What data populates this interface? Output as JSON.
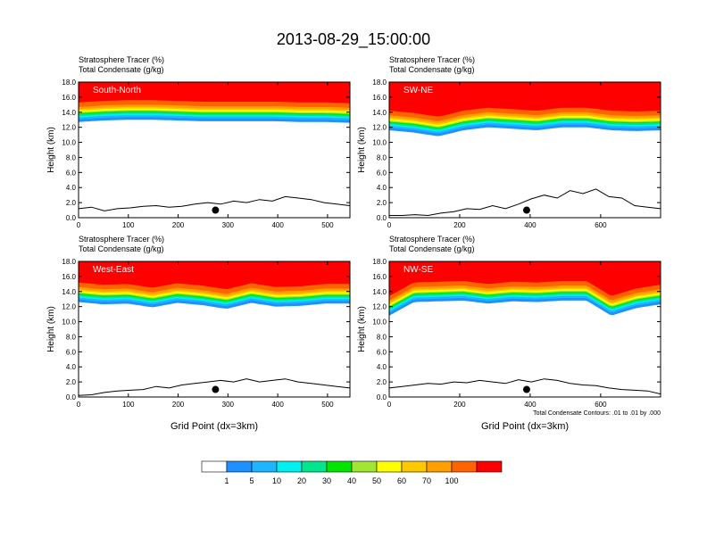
{
  "figure": {
    "title": "2013-08-29_15:00:00",
    "footnote": "Total Condensate Contours: .01 to .01 by .000"
  },
  "colorbar": {
    "colors": [
      "#ffffff",
      "#1e90ff",
      "#1eb4ff",
      "#00f0f0",
      "#00e68c",
      "#00e600",
      "#a0e632",
      "#ffff00",
      "#ffc800",
      "#ffa000",
      "#ff6400",
      "#ff0000"
    ],
    "labels": [
      "1",
      "5",
      "10",
      "20",
      "30",
      "40",
      "50",
      "60",
      "70",
      "100"
    ]
  },
  "chart_data": [
    {
      "type": "heatmap",
      "panel_label": "South-North",
      "title_lines": [
        "Stratosphere Tracer   (%)",
        "Total Condensate   (g/kg)"
      ],
      "ylabel": "Height (km)",
      "xlabel": "",
      "xlim": [
        0,
        545
      ],
      "ylim": [
        0,
        18
      ],
      "xticks": [
        "0",
        "100",
        "200",
        "300",
        "400",
        "500"
      ],
      "yticks": [
        "0.0",
        "2.0",
        "4.0",
        "6.0",
        "8.0",
        "10.0",
        "12.0",
        "14.0",
        "16.0",
        "18.0"
      ],
      "tracer_base_km": [
        12.7,
        12.9,
        13.0,
        13.0,
        12.9,
        12.8,
        12.8,
        12.8,
        12.8,
        12.7,
        12.7,
        12.6
      ],
      "terrain_km": [
        1.2,
        1.4,
        0.9,
        1.2,
        1.3,
        1.5,
        1.6,
        1.4,
        1.5,
        1.8,
        2.0,
        1.8,
        2.2,
        2.0,
        2.4,
        2.2,
        2.8,
        2.6,
        2.4,
        2.0,
        1.8,
        1.6
      ],
      "marker": {
        "x": 275,
        "y_km": 1.0
      },
      "footnote": "",
      "show_xlabel": false
    },
    {
      "type": "heatmap",
      "panel_label": "SW-NE",
      "title_lines": [
        "Stratosphere Tracer   (%)",
        "Total Condensate   (g/kg)"
      ],
      "ylabel": "Height (km)",
      "xlabel": "",
      "xlim": [
        0,
        770
      ],
      "ylim": [
        0,
        18
      ],
      "xticks": [
        "0",
        "200",
        "400",
        "600"
      ],
      "yticks": [
        "0.0",
        "2.0",
        "4.0",
        "6.0",
        "8.0",
        "10.0",
        "12.0",
        "14.0",
        "16.0",
        "18.0"
      ],
      "tracer_base_km": [
        11.6,
        11.3,
        10.8,
        11.6,
        12.0,
        11.8,
        11.6,
        12.0,
        12.0,
        11.6,
        11.5,
        11.6
      ],
      "terrain_km": [
        0.3,
        0.3,
        0.4,
        0.3,
        0.6,
        0.8,
        1.2,
        1.1,
        1.6,
        1.2,
        1.8,
        2.5,
        3.0,
        2.6,
        3.6,
        3.2,
        3.8,
        2.8,
        2.6,
        1.6,
        1.4,
        1.2
      ],
      "marker": {
        "x": 390,
        "y_km": 1.0
      },
      "footnote": "",
      "show_xlabel": false
    },
    {
      "type": "heatmap",
      "panel_label": "West-East",
      "title_lines": [
        "Stratosphere Tracer   (%)",
        "Total Condensate   (g/kg)"
      ],
      "ylabel": "Height (km)",
      "xlabel": "Grid Point (dx=3km)",
      "xlim": [
        0,
        545
      ],
      "ylim": [
        0,
        18
      ],
      "xticks": [
        "0",
        "100",
        "200",
        "300",
        "400",
        "500"
      ],
      "yticks": [
        "0.0",
        "2.0",
        "4.0",
        "6.0",
        "8.0",
        "10.0",
        "12.0",
        "14.0",
        "16.0",
        "18.0"
      ],
      "tracer_base_km": [
        12.6,
        12.3,
        12.4,
        11.9,
        12.5,
        12.2,
        11.7,
        12.5,
        12.0,
        12.1,
        12.4,
        12.4
      ],
      "terrain_km": [
        0.2,
        0.3,
        0.6,
        0.8,
        0.9,
        1.0,
        1.4,
        1.2,
        1.6,
        1.8,
        2.0,
        2.2,
        2.0,
        2.4,
        2.0,
        2.2,
        2.4,
        2.0,
        1.8,
        1.6,
        1.4,
        1.2
      ],
      "marker": {
        "x": 275,
        "y_km": 1.0
      },
      "footnote": "",
      "show_xlabel": true
    },
    {
      "type": "heatmap",
      "panel_label": "NW-SE",
      "title_lines": [
        "Stratosphere Tracer   (%)",
        "Total Condensate   (g/kg)"
      ],
      "ylabel": "Height (km)",
      "xlabel": "Grid Point (dx=3km)",
      "xlim": [
        0,
        770
      ],
      "ylim": [
        0,
        18
      ],
      "xticks": [
        "0",
        "200",
        "400",
        "600"
      ],
      "yticks": [
        "0.0",
        "2.0",
        "4.0",
        "6.0",
        "8.0",
        "10.0",
        "12.0",
        "14.0",
        "16.0",
        "18.0"
      ],
      "tracer_base_km": [
        10.8,
        12.6,
        12.7,
        12.8,
        12.4,
        12.7,
        12.6,
        12.8,
        12.8,
        10.8,
        11.8,
        12.3
      ],
      "terrain_km": [
        1.2,
        1.4,
        1.6,
        1.8,
        1.7,
        2.0,
        1.9,
        2.2,
        2.0,
        1.8,
        2.3,
        2.0,
        2.4,
        2.2,
        1.8,
        1.6,
        1.5,
        1.2,
        1.0,
        0.9,
        0.8,
        0.4
      ],
      "marker": {
        "x": 390,
        "y_km": 1.0
      },
      "footnote": "Total Condensate Contours: .01 to .01 by .000",
      "show_xlabel": true
    }
  ]
}
